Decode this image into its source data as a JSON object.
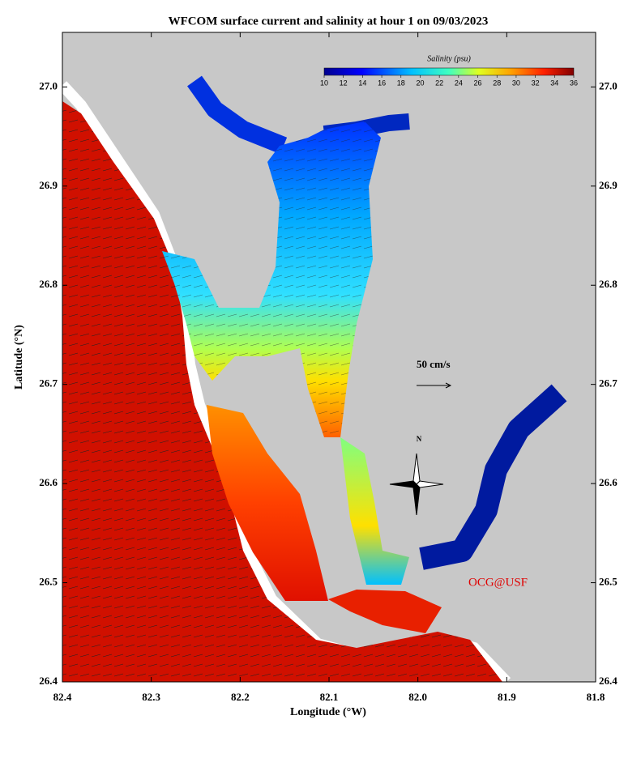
{
  "map_data": {
    "title": "WFCOM surface current and salinity at hour 1 on 09/03/2023",
    "xlabel": "Longitude (°W)",
    "ylabel": "Latitude (°N)",
    "xlim": [
      82.4,
      81.8
    ],
    "ylim": [
      26.4,
      27.055
    ],
    "xticks": [
      82.4,
      82.3,
      82.2,
      82.1,
      {
        "value": 82,
        "label": "82.0"
      },
      81.9,
      81.8
    ],
    "yticks": [
      26.4,
      26.5,
      26.6,
      26.7,
      26.8,
      26.9,
      {
        "value": 27,
        "label": "27.0"
      }
    ],
    "colorbar": {
      "title": "Salinity (psu)",
      "lim": [
        10,
        36
      ],
      "ticks": [
        10,
        12,
        14,
        16,
        18,
        20,
        22,
        24,
        26,
        28,
        30,
        32,
        34,
        36
      ]
    },
    "scale_label": "50 cm/s",
    "compass_label": "N",
    "credit": "OCG@USF"
  }
}
